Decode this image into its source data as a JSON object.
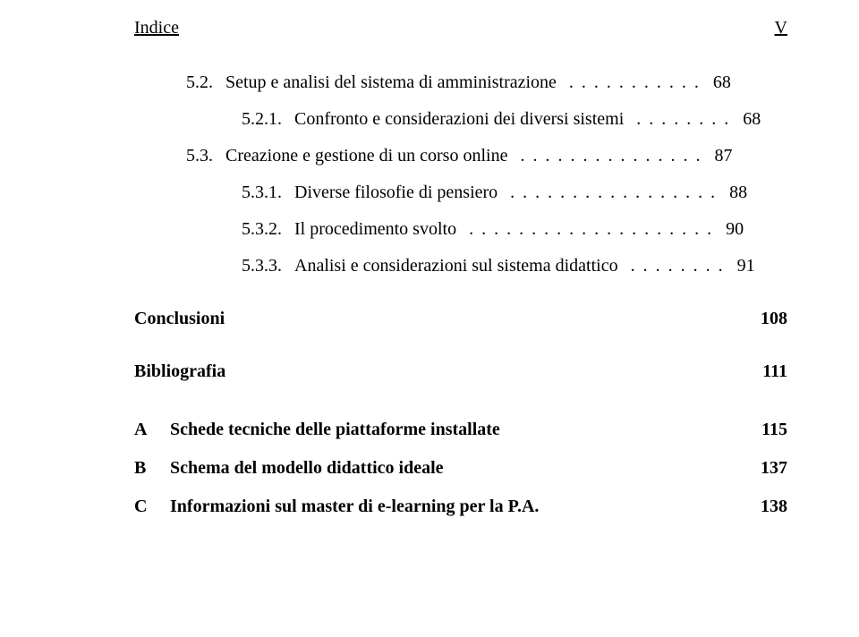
{
  "header": {
    "left": "Indice",
    "right": "V"
  },
  "toc": {
    "line1": {
      "num": "5.2.",
      "label": "Setup e analisi del sistema di amministrazione",
      "dots": ". . . . . . . . . . .",
      "page": "68"
    },
    "line2": {
      "num": "5.2.1.",
      "label": "Confronto e considerazioni dei diversi sistemi",
      "dots": ". . . . . . . .",
      "page": "68"
    },
    "line3": {
      "num": "5.3.",
      "label": "Creazione e gestione di un corso online",
      "dots": ". . . . . . . . . . . . . . .",
      "page": "87"
    },
    "line4": {
      "num": "5.3.1.",
      "label": "Diverse filosofie di pensiero",
      "dots": ". . . . . . . . . . . . . . . . .",
      "page": "88"
    },
    "line5": {
      "num": "5.3.2.",
      "label": "Il procedimento svolto",
      "dots": ". . . . . . . . . . . . . . . . . . . .",
      "page": "90"
    },
    "line6": {
      "num": "5.3.3.",
      "label": "Analisi e considerazioni sul sistema didattico",
      "dots": ". . . . . . . .",
      "page": "91"
    }
  },
  "sections": {
    "conclusioni": {
      "label": "Conclusioni",
      "page": "108"
    },
    "bibliografia": {
      "label": "Bibliografia",
      "page": "111"
    }
  },
  "appendix": {
    "a": {
      "letter": "A",
      "label": "Schede tecniche delle piattaforme installate",
      "page": "115"
    },
    "b": {
      "letter": "B",
      "label": "Schema del modello didattico ideale",
      "page": "137"
    },
    "c": {
      "letter": "C",
      "label": "Informazioni sul master di e-learning per la P.A.",
      "page": "138"
    }
  }
}
